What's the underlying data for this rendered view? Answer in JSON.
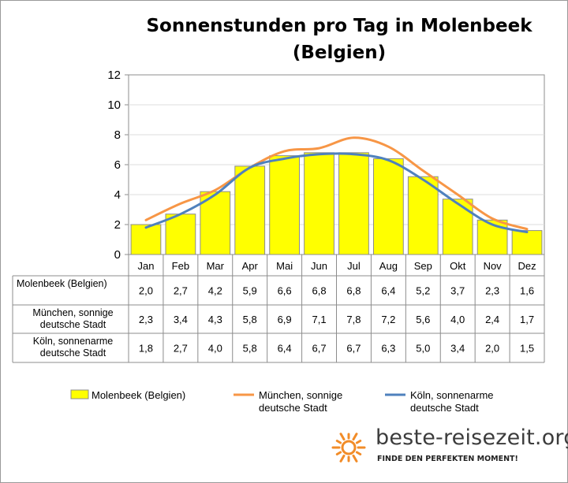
{
  "chart_data": {
    "type": "bar",
    "title": "Sonnenstunden pro Tag in Molenbeek (Belgien)",
    "categories": [
      "Jan",
      "Feb",
      "Mar",
      "Apr",
      "Mai",
      "Jun",
      "Jul",
      "Aug",
      "Sep",
      "Okt",
      "Nov",
      "Dez"
    ],
    "ylim": [
      0,
      12
    ],
    "yticks": [
      0,
      2,
      4,
      6,
      8,
      10,
      12
    ],
    "grid": true,
    "legend": "bottom",
    "series": [
      {
        "name": "Molenbeek (Belgien)",
        "type": "bar",
        "color": "#ffff00",
        "table_label": "Molenbeek (Belgien)",
        "values": [
          2.0,
          2.7,
          4.2,
          5.9,
          6.6,
          6.8,
          6.8,
          6.4,
          5.2,
          3.7,
          2.3,
          1.6
        ],
        "display": [
          "2,0",
          "2,7",
          "4,2",
          "5,9",
          "6,6",
          "6,8",
          "6,8",
          "6,4",
          "5,2",
          "3,7",
          "2,3",
          "1,6"
        ]
      },
      {
        "name": "München, sonnige deutsche Stadt",
        "type": "line",
        "color": "#f79646",
        "table_label": [
          "München, sonnige",
          "deutsche Stadt"
        ],
        "values": [
          2.3,
          3.4,
          4.3,
          5.8,
          6.9,
          7.1,
          7.8,
          7.2,
          5.6,
          4.0,
          2.4,
          1.7
        ],
        "display": [
          "2,3",
          "3,4",
          "4,3",
          "5,8",
          "6,9",
          "7,1",
          "7,8",
          "7,2",
          "5,6",
          "4,0",
          "2,4",
          "1,7"
        ]
      },
      {
        "name": "Köln, sonnenarme deutsche Stadt",
        "type": "line",
        "color": "#4f81bd",
        "table_label": [
          "Köln, sonnenarme",
          "deutsche Stadt"
        ],
        "values": [
          1.8,
          2.7,
          4.0,
          5.8,
          6.4,
          6.7,
          6.7,
          6.3,
          5.0,
          3.4,
          2.0,
          1.5
        ],
        "display": [
          "1,8",
          "2,7",
          "4,0",
          "5,8",
          "6,4",
          "6,7",
          "6,7",
          "6,3",
          "5,0",
          "3,4",
          "2,0",
          "1,5"
        ]
      }
    ],
    "legend_entries": [
      {
        "lines": [
          "Molenbeek (Belgien)"
        ],
        "kind": "bar",
        "color": "#ffff00"
      },
      {
        "lines": [
          "München, sonnige",
          "deutsche Stadt"
        ],
        "kind": "line",
        "color": "#f79646"
      },
      {
        "lines": [
          "Köln, sonnenarme",
          "deutsche Stadt"
        ],
        "kind": "line",
        "color": "#4f81bd"
      }
    ]
  },
  "logo": {
    "text": "beste-reisezeit.org",
    "tagline": "FINDE DEN PERFEKTEN MOMENT!",
    "icon": "sun-icon",
    "icon_color": "#f28c28"
  }
}
